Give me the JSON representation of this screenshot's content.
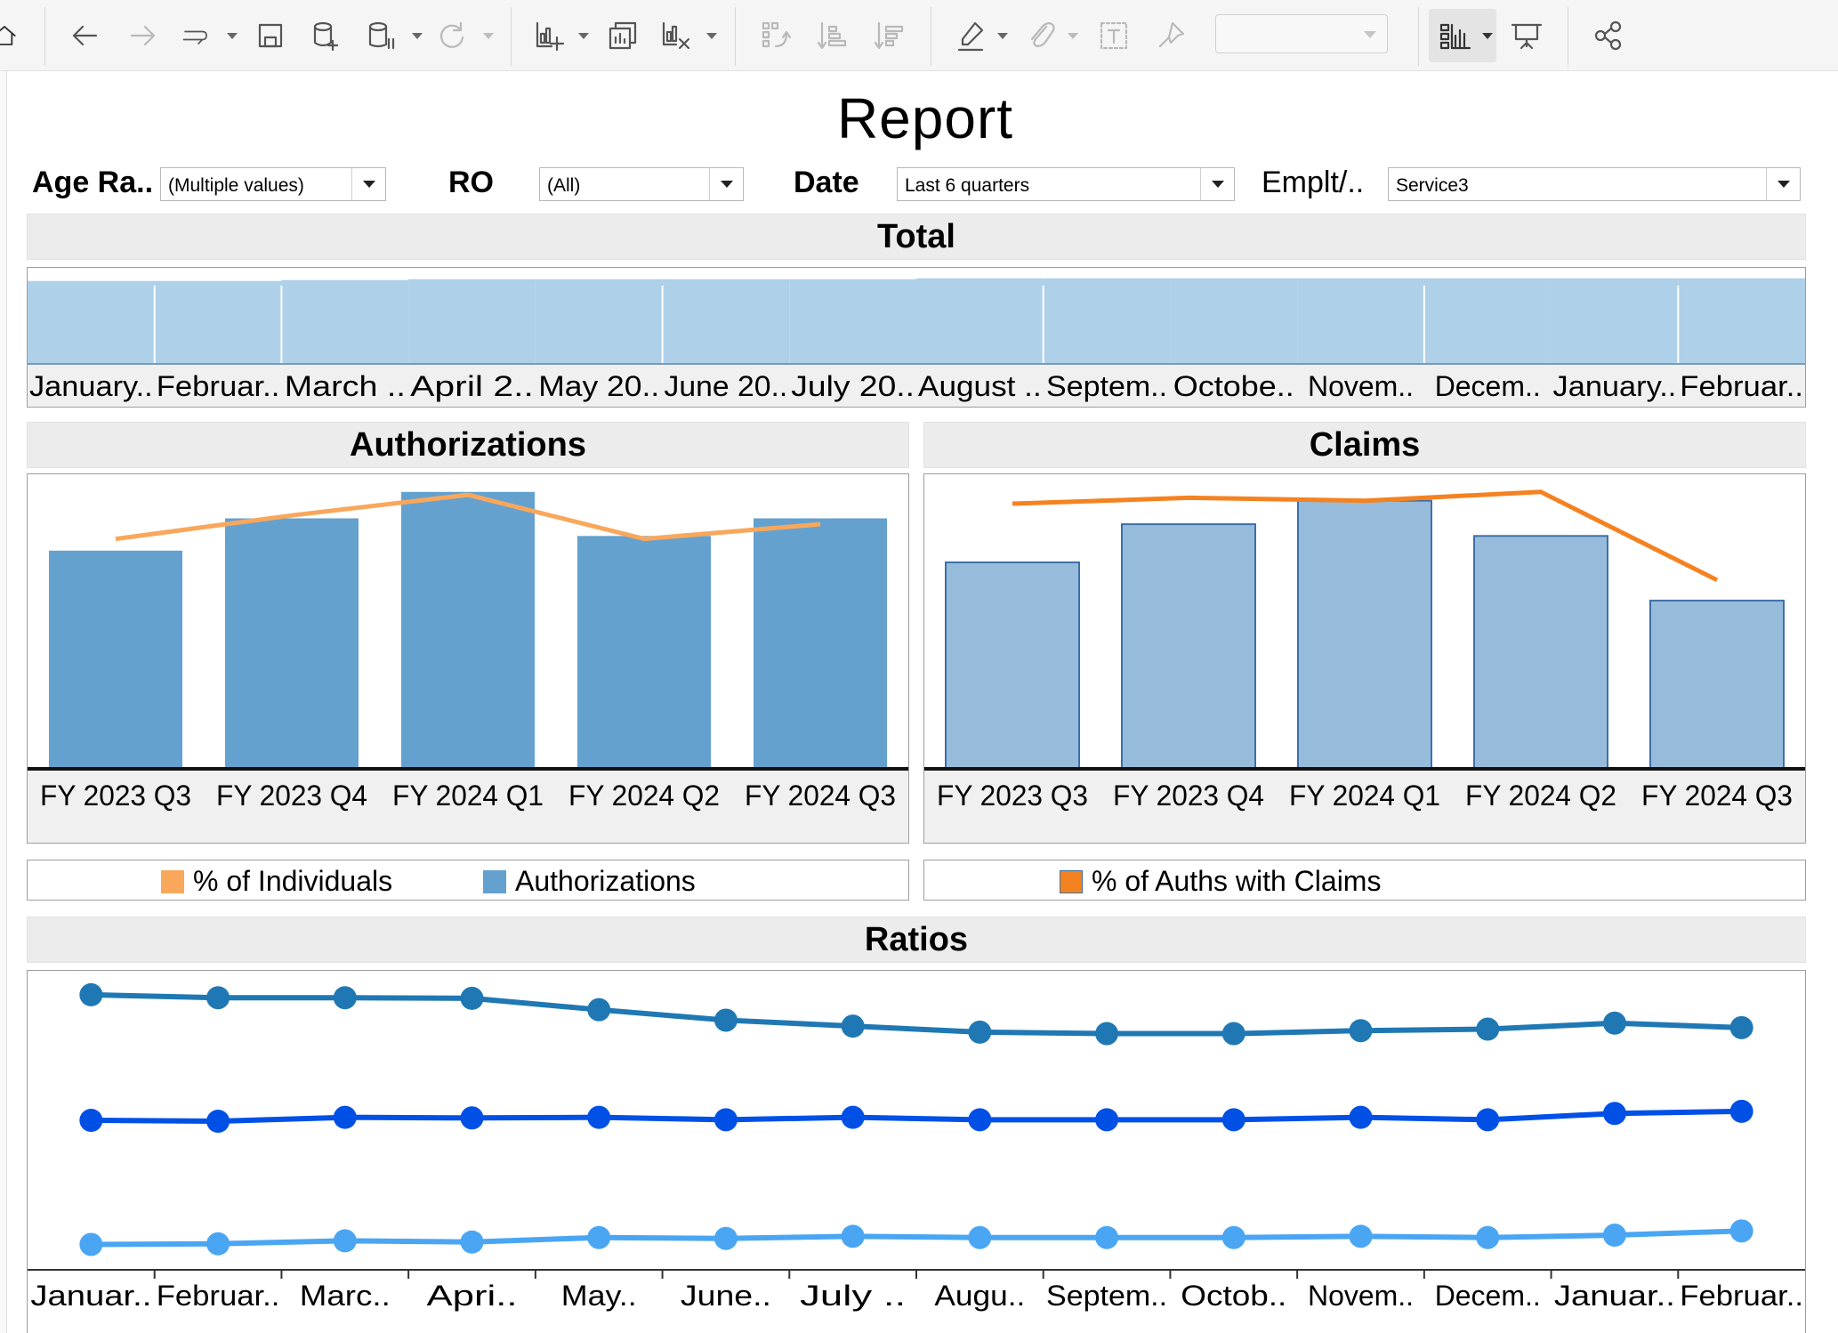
{
  "toolbar": {
    "icons": [
      "home-icon",
      "back-icon",
      "forward-icon",
      "redo-icon",
      "save-icon",
      "new-datasource-icon",
      "pause-updates-icon",
      "refresh-icon",
      "new-worksheet-icon",
      "duplicate-sheet-icon",
      "clear-sheet-icon",
      "swap-icon",
      "sort-ascending-icon",
      "sort-descending-icon",
      "highlight-icon",
      "group-icon",
      "label-icon",
      "fix-axes-icon",
      "show-me-icon",
      "presentation-icon",
      "share-icon"
    ],
    "fit_value": ""
  },
  "report": {
    "title": "Report"
  },
  "filters": [
    {
      "label": "Age Ra..",
      "value": "(Multiple values)"
    },
    {
      "label": "RO",
      "value": "(All)"
    },
    {
      "label": "Date",
      "value": "Last 6 quarters"
    },
    {
      "label": "Emplt/..",
      "value": "Service3"
    }
  ],
  "colors": {
    "auth_bar": "#64a1cf",
    "claims_bar": "#97bcdb",
    "claims_bar_border": "#3f6fa8",
    "total_bar": "#aed0e9",
    "pct_individuals": "#f9a75b",
    "pct_auths_claims": "#f58220",
    "ratio_top": "#1f78b4",
    "ratio_mid": "#0050e6",
    "ratio_bottom": "#4aa6f3"
  },
  "sections": {
    "total": "Total",
    "authorizations": "Authorizations",
    "claims": "Claims",
    "ratios": "Ratios"
  },
  "legends": {
    "authorizations": [
      {
        "label": "% of Individuals"
      },
      {
        "label": "Authorizations"
      }
    ],
    "claims": [
      {
        "label": "% of Auths with Claims"
      }
    ]
  },
  "chart_data": [
    {
      "type": "bar",
      "name": "total",
      "categories": [
        "January..",
        "Februar..",
        "March ..",
        "April 2..",
        "May 20..",
        "June 20..",
        "July 20..",
        "August ..",
        "Septem..",
        "Octobe..",
        "Novem..",
        "Decem..",
        "January..",
        "Februar.."
      ],
      "values": [
        0.95,
        0.95,
        0.96,
        0.97,
        0.97,
        0.97,
        0.97,
        0.98,
        0.98,
        0.98,
        0.98,
        0.98,
        0.98,
        0.98
      ],
      "ylim": [
        0,
        1.1
      ]
    },
    {
      "type": "bar",
      "name": "authorizations",
      "categories": [
        "FY 2023 Q3",
        "FY 2023 Q4",
        "FY 2024 Q1",
        "FY 2024 Q2",
        "FY 2024 Q3"
      ],
      "series": [
        {
          "name": "Authorizations",
          "values": [
            74,
            85,
            94,
            79,
            85
          ]
        },
        {
          "name": "% of Individuals",
          "values": [
            78,
            86,
            93,
            78,
            83
          ]
        }
      ],
      "ylim": [
        0,
        100
      ]
    },
    {
      "type": "bar",
      "name": "claims",
      "categories": [
        "FY 2023 Q3",
        "FY 2023 Q4",
        "FY 2024 Q1",
        "FY 2024 Q2",
        "FY 2024 Q3"
      ],
      "series": [
        {
          "name": "Claims",
          "values": [
            70,
            83,
            91,
            79,
            57
          ]
        },
        {
          "name": "% of Auths with Claims",
          "values": [
            90,
            92,
            91,
            94,
            64
          ]
        }
      ],
      "ylim": [
        0,
        100
      ]
    },
    {
      "type": "line",
      "name": "ratios",
      "categories": [
        "Januar..",
        "Februar..",
        "Marc..",
        "Apri..",
        "May..",
        "June..",
        "July ..",
        "Augu..",
        "Septem..",
        "Octob..",
        "Novem..",
        "Decem..",
        "Januar..",
        "Februar.."
      ],
      "series": [
        {
          "values": [
            92,
            91,
            91,
            90.8,
            87,
            83.5,
            81.5,
            79.5,
            79,
            79,
            80,
            80.5,
            82.5,
            81
          ]
        },
        {
          "values": [
            50,
            49.7,
            51,
            50.8,
            51,
            50.2,
            51,
            50.2,
            50.2,
            50.2,
            51,
            50.2,
            52.3,
            53
          ]
        },
        {
          "values": [
            8.5,
            8.7,
            9.7,
            9.3,
            10.8,
            10.5,
            11.2,
            10.8,
            10.8,
            10.8,
            11.2,
            10.8,
            11.6,
            13
          ]
        }
      ],
      "ylim": [
        0,
        100
      ]
    }
  ]
}
